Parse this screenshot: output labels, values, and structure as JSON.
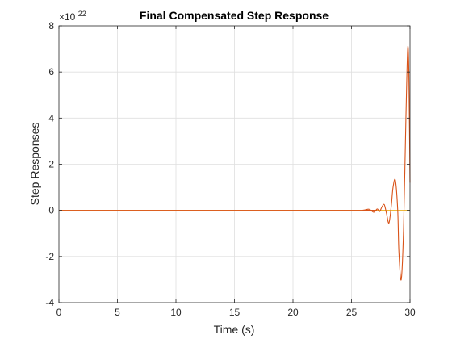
{
  "chart_data": {
    "type": "line",
    "title": "Final Compensated Step Response",
    "xlabel": "Time (s)",
    "ylabel": "Step Responses",
    "xlim": [
      0,
      30
    ],
    "ylim": [
      -4,
      8
    ],
    "y_exponent_label": "×10",
    "y_exponent_power": "22",
    "x_ticks": [
      0,
      5,
      10,
      15,
      20,
      25,
      30
    ],
    "x_tick_labels": [
      "0",
      "5",
      "10",
      "15",
      "20",
      "25",
      "30"
    ],
    "y_ticks": [
      -4,
      -2,
      0,
      2,
      4,
      6,
      8
    ],
    "y_tick_labels": [
      "-4",
      "-2",
      "0",
      "2",
      "4",
      "6",
      "8"
    ],
    "grid": true,
    "series": [
      {
        "color": "#EDB120",
        "x": [
          0,
          30
        ],
        "y": [
          0,
          0
        ]
      },
      {
        "color": "#D95319",
        "x": [
          0,
          25.0,
          26.0,
          26.5,
          26.9,
          27.2,
          27.4,
          27.6,
          27.8,
          28.0,
          28.2,
          28.4,
          28.55,
          28.75,
          28.95,
          29.05,
          29.25,
          29.45,
          29.65,
          29.8,
          29.9,
          30.0
        ],
        "y": [
          0,
          0,
          0.01,
          0.05,
          -0.08,
          0.06,
          -0.05,
          0.15,
          0.25,
          -0.15,
          -0.55,
          0.2,
          1.0,
          1.3,
          0.0,
          -1.8,
          -3.0,
          -0.8,
          4.0,
          7.0,
          6.0,
          1.2
        ]
      }
    ]
  }
}
